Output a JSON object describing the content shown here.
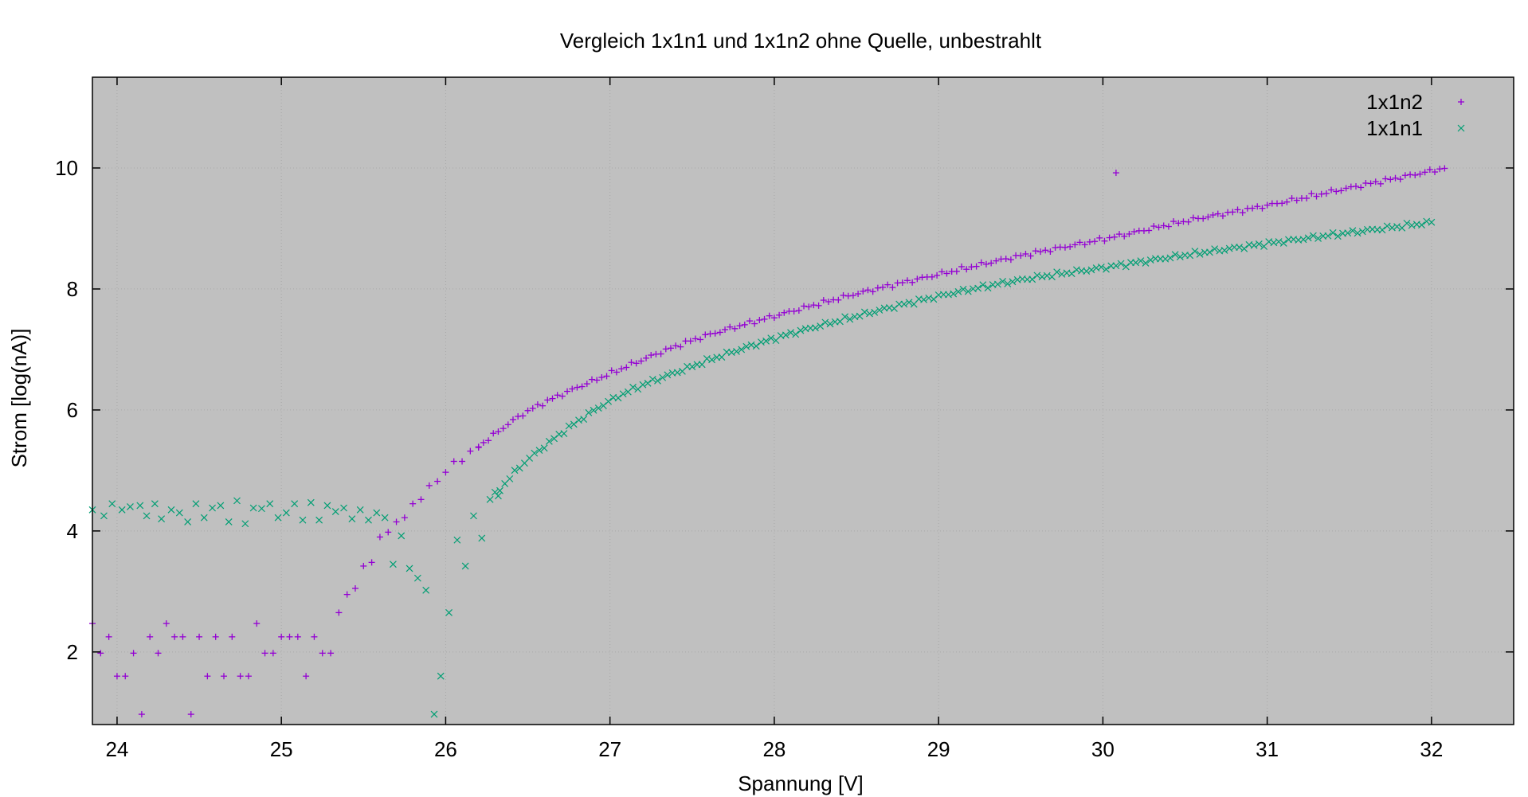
{
  "chart_data": {
    "type": "scatter",
    "title": "Vergleich 1x1n1 und 1x1n2 ohne Quelle, unbestrahlt",
    "xlabel": "Spannung [V]",
    "ylabel": "Strom [log(nA)]",
    "xlim": [
      23.85,
      32.5
    ],
    "ylim": [
      0.8,
      11.5
    ],
    "xticks": [
      24,
      25,
      26,
      27,
      28,
      29,
      30,
      31,
      32
    ],
    "yticks": [
      2,
      4,
      6,
      8,
      10
    ],
    "grid": true,
    "legend_position": "top-right",
    "background_color": "#c0c0c0",
    "series": [
      {
        "name": "1x1n2",
        "marker": "plus",
        "color": "#9400d3",
        "x_start": 23.85,
        "x_step": 0.03,
        "outlier": [
          30.08,
          9.92
        ],
        "low_points": [
          [
            23.85,
            2.47
          ],
          [
            23.9,
            1.98
          ],
          [
            23.95,
            2.25
          ],
          [
            24.0,
            1.6
          ],
          [
            24.05,
            1.6
          ],
          [
            24.1,
            1.98
          ],
          [
            24.15,
            0.97
          ],
          [
            24.2,
            2.25
          ],
          [
            24.25,
            1.98
          ],
          [
            24.3,
            2.47
          ],
          [
            24.35,
            2.25
          ],
          [
            24.4,
            2.25
          ],
          [
            24.45,
            0.97
          ],
          [
            24.5,
            2.25
          ],
          [
            24.55,
            1.6
          ],
          [
            24.6,
            2.25
          ],
          [
            24.65,
            1.6
          ],
          [
            24.7,
            2.25
          ],
          [
            24.75,
            1.6
          ],
          [
            24.8,
            1.6
          ],
          [
            24.85,
            2.47
          ],
          [
            24.9,
            1.98
          ],
          [
            24.95,
            1.98
          ],
          [
            25.0,
            2.25
          ],
          [
            25.05,
            2.25
          ],
          [
            25.1,
            2.25
          ],
          [
            25.15,
            1.6
          ],
          [
            25.2,
            2.25
          ],
          [
            25.25,
            1.98
          ],
          [
            25.3,
            1.98
          ],
          [
            25.35,
            2.65
          ],
          [
            25.4,
            2.95
          ],
          [
            25.45,
            3.05
          ],
          [
            25.5,
            3.42
          ],
          [
            25.55,
            3.48
          ],
          [
            25.6,
            3.9
          ],
          [
            25.65,
            3.98
          ],
          [
            25.7,
            4.15
          ],
          [
            25.75,
            4.22
          ],
          [
            25.8,
            4.45
          ],
          [
            25.85,
            4.52
          ],
          [
            25.9,
            4.75
          ],
          [
            25.95,
            4.82
          ],
          [
            26.0,
            4.97
          ],
          [
            26.05,
            5.15
          ],
          [
            26.1,
            5.15
          ],
          [
            26.15,
            5.32
          ],
          [
            26.2,
            5.38
          ]
        ],
        "curve": [
          [
            26.2,
            5.4
          ],
          [
            26.5,
            5.98
          ],
          [
            27.0,
            6.6
          ],
          [
            27.5,
            7.15
          ],
          [
            28.0,
            7.55
          ],
          [
            28.5,
            7.92
          ],
          [
            29.0,
            8.24
          ],
          [
            29.5,
            8.55
          ],
          [
            30.0,
            8.82
          ],
          [
            30.5,
            9.12
          ],
          [
            31.0,
            9.38
          ],
          [
            31.5,
            9.67
          ],
          [
            32.0,
            9.95
          ],
          [
            32.08,
            10.0
          ]
        ]
      },
      {
        "name": "1x1n1",
        "marker": "cross",
        "color": "#009e73",
        "x_start": 23.85,
        "x_step": 0.03,
        "low_points": [
          [
            23.85,
            4.35
          ],
          [
            23.92,
            4.25
          ],
          [
            23.97,
            4.45
          ],
          [
            24.03,
            4.35
          ],
          [
            24.08,
            4.4
          ],
          [
            24.14,
            4.42
          ],
          [
            24.18,
            4.25
          ],
          [
            24.23,
            4.45
          ],
          [
            24.27,
            4.2
          ],
          [
            24.33,
            4.35
          ],
          [
            24.38,
            4.3
          ],
          [
            24.43,
            4.15
          ],
          [
            24.48,
            4.45
          ],
          [
            24.53,
            4.22
          ],
          [
            24.58,
            4.38
          ],
          [
            24.63,
            4.42
          ],
          [
            24.68,
            4.15
          ],
          [
            24.73,
            4.5
          ],
          [
            24.78,
            4.12
          ],
          [
            24.83,
            4.38
          ],
          [
            24.88,
            4.37
          ],
          [
            24.93,
            4.45
          ],
          [
            24.98,
            4.22
          ],
          [
            25.03,
            4.3
          ],
          [
            25.08,
            4.45
          ],
          [
            25.13,
            4.18
          ],
          [
            25.18,
            4.47
          ],
          [
            25.23,
            4.18
          ],
          [
            25.28,
            4.42
          ],
          [
            25.33,
            4.32
          ],
          [
            25.38,
            4.38
          ],
          [
            25.43,
            4.2
          ],
          [
            25.48,
            4.35
          ],
          [
            25.53,
            4.18
          ],
          [
            25.58,
            4.3
          ],
          [
            25.63,
            4.22
          ],
          [
            25.68,
            3.45
          ],
          [
            25.73,
            3.92
          ],
          [
            25.78,
            3.38
          ],
          [
            25.83,
            3.22
          ],
          [
            25.88,
            3.02
          ],
          [
            25.93,
            0.97
          ],
          [
            25.97,
            1.6
          ],
          [
            26.02,
            2.65
          ],
          [
            26.07,
            3.85
          ],
          [
            26.12,
            3.42
          ],
          [
            26.17,
            4.25
          ],
          [
            26.22,
            3.88
          ],
          [
            26.27,
            4.52
          ],
          [
            26.32,
            4.58
          ]
        ],
        "curve": [
          [
            26.3,
            4.6
          ],
          [
            26.5,
            5.18
          ],
          [
            27.0,
            6.15
          ],
          [
            27.5,
            6.72
          ],
          [
            28.0,
            7.18
          ],
          [
            28.5,
            7.55
          ],
          [
            29.0,
            7.88
          ],
          [
            29.5,
            8.15
          ],
          [
            30.0,
            8.35
          ],
          [
            30.5,
            8.56
          ],
          [
            31.0,
            8.75
          ],
          [
            31.5,
            8.93
          ],
          [
            32.0,
            9.1
          ]
        ]
      }
    ]
  }
}
